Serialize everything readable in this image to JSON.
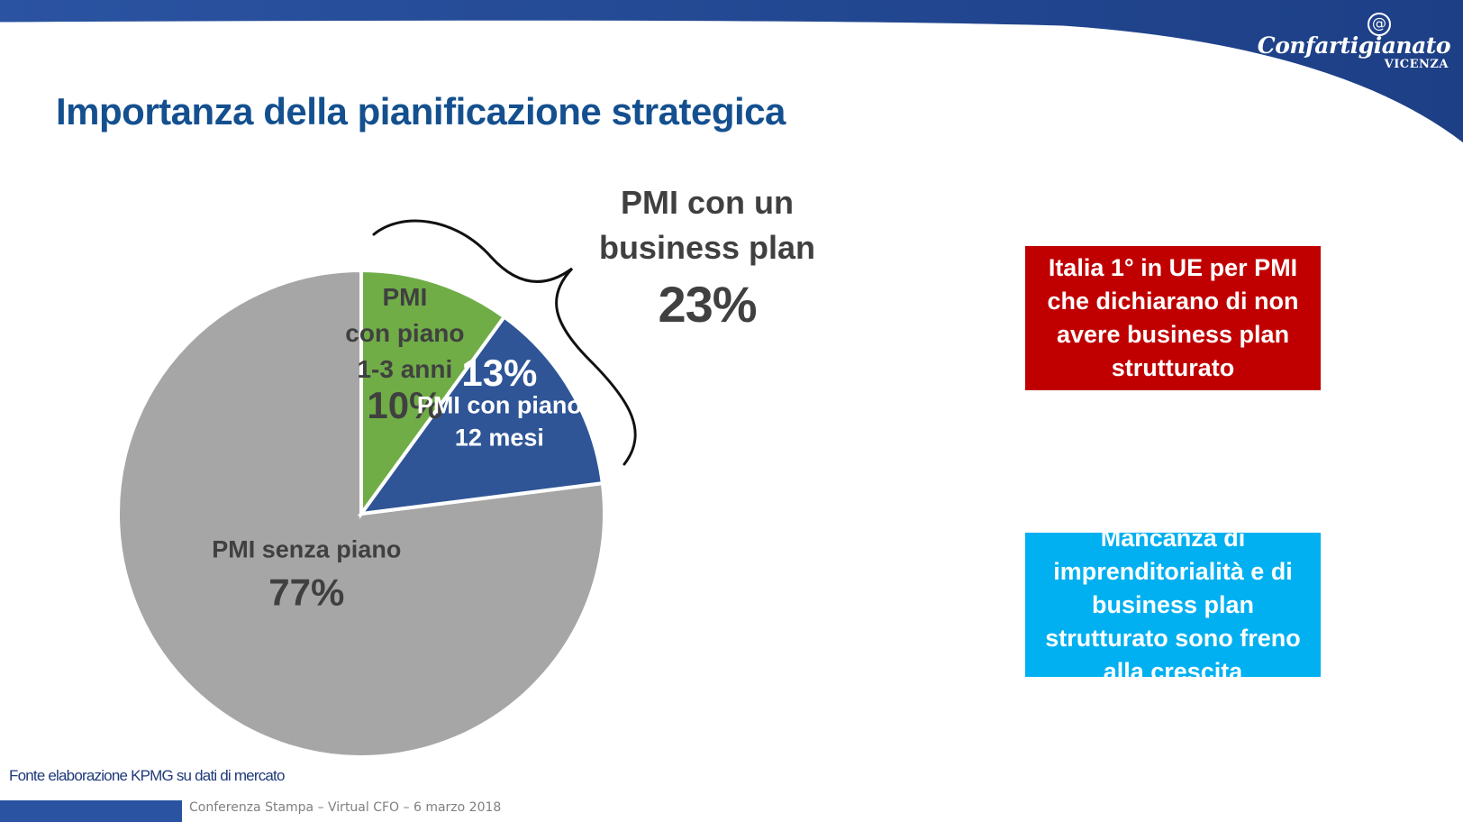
{
  "header": {
    "logo_symbol": "@",
    "logo_name": "Confartigianato",
    "logo_city": "VICENZA",
    "title": "Importanza della pianificazione strategica"
  },
  "callout": {
    "title": "PMI con un\nbusiness plan",
    "value": "23%"
  },
  "boxes": {
    "red": "Italia 1° in UE per PMI che dichiarano di non avere business plan strutturato",
    "blue": "Mancanza di imprenditorialità e di business plan strutturato sono freno alla crescita"
  },
  "source": "Fonte elaborazione KPMG su dati di mercato",
  "footer": "Conferenza Stampa – Virtual CFO – 6 marzo 2018",
  "colors": {
    "brand_blue": "#2a53a1",
    "title_blue": "#14508f",
    "slice_green": "#70ad47",
    "slice_blue": "#2f5597",
    "slice_grey": "#a6a6a6",
    "box_red": "#c00000",
    "box_blue": "#00b0f0"
  },
  "chart_data": {
    "type": "pie",
    "categories": [
      "PMI con piano 1-3 anni",
      "PMI con piano 12 mesi",
      "PMI senza piano"
    ],
    "values": [
      10,
      13,
      77
    ],
    "unit": "%",
    "labels": [
      {
        "name_lines": [
          "PMI",
          "con piano",
          "1-3 anni"
        ],
        "value": "10%"
      },
      {
        "name_lines": [
          "PMI con piano",
          "12 mesi"
        ],
        "value": "13%"
      },
      {
        "name_lines": [
          "PMI senza piano"
        ],
        "value": "77%"
      }
    ],
    "colors": [
      "#70ad47",
      "#2f5597",
      "#a6a6a6"
    ],
    "legend": "none"
  }
}
